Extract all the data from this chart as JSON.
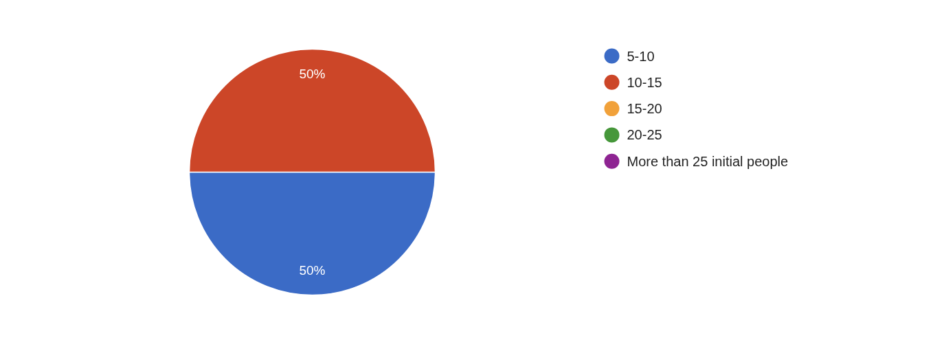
{
  "chart_data": {
    "type": "pie",
    "categories": [
      "5-10",
      "10-15",
      "15-20",
      "20-25",
      "More than 25 initial people"
    ],
    "values": [
      50,
      50,
      0,
      0,
      0
    ],
    "colors": [
      "#3b6bc6",
      "#cc4628",
      "#f1a13a",
      "#46973a",
      "#8e2492"
    ],
    "value_labels": [
      "50%",
      "50%",
      null,
      null,
      null
    ],
    "legend": "right"
  }
}
